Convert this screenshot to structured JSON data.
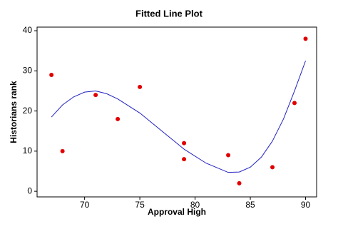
{
  "chart_data": {
    "type": "scatter",
    "title": "Fitted Line Plot",
    "x_label": "Approval High",
    "y_label": "Historians rank",
    "xlim": [
      65.7,
      91
    ],
    "ylim": [
      -1.4,
      40.9
    ],
    "xticks": [
      70,
      75,
      80,
      85,
      90
    ],
    "yticks": [
      0,
      10,
      20,
      30,
      40
    ],
    "series": [
      {
        "type": "scatter",
        "color": "#e00000",
        "x": [
          67,
          68,
          71,
          73,
          75,
          79,
          79,
          83,
          84,
          87,
          89,
          90
        ],
        "values": [
          29,
          10,
          24,
          18,
          26,
          12,
          8,
          9,
          2,
          6,
          22,
          38
        ]
      },
      {
        "type": "line",
        "color": "#2020c0",
        "x": [
          67,
          68,
          69,
          70,
          71,
          72,
          73,
          75,
          77,
          79,
          81,
          83,
          84,
          85,
          86,
          87,
          88,
          89,
          90
        ],
        "values": [
          18.5,
          21.5,
          23.5,
          24.7,
          25,
          24.3,
          23,
          19.5,
          15,
          10.5,
          7,
          4.7,
          4.8,
          6,
          8.5,
          12.5,
          18,
          25,
          32.5
        ]
      }
    ]
  }
}
